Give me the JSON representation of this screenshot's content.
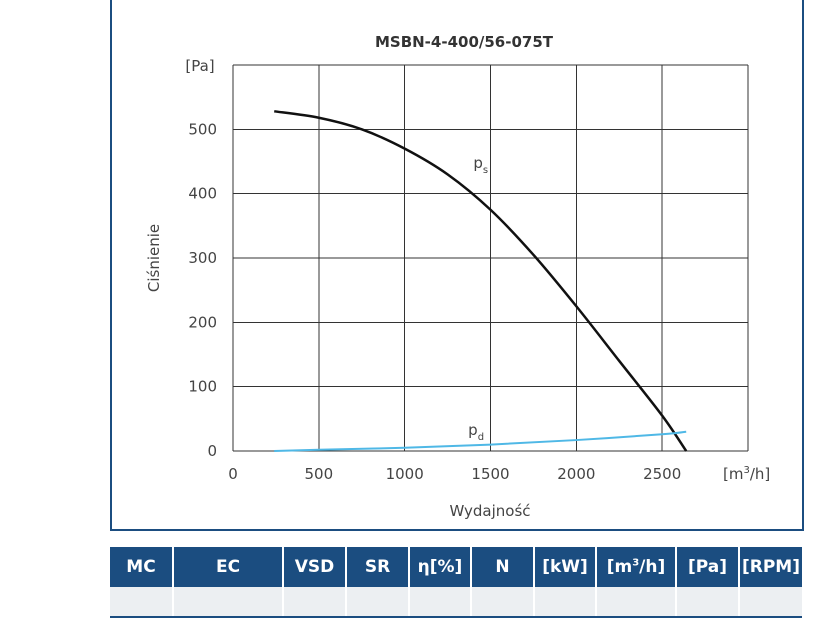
{
  "colors": {
    "frame": "#1b4d80",
    "ps_curve": "#111111",
    "pd_curve": "#4fb8e6",
    "header_bg": "#1b4d80",
    "row_bg": "#eceff2"
  },
  "chart_data": {
    "type": "line",
    "title": "MSBN-4-400/56-075T",
    "xlabel": "Wydajność",
    "ylabel": "Ciśnienie",
    "x_unit_prefix": "[m",
    "x_unit_sup": "3",
    "x_unit_suffix": "/h]",
    "y_unit": "[Pa]",
    "xlim": [
      0,
      3000
    ],
    "ylim": [
      0,
      600
    ],
    "x_ticks": [
      "0",
      "500",
      "1000",
      "1500",
      "2000",
      "2500"
    ],
    "y_ticks": [
      "0",
      "100",
      "200",
      "300",
      "400",
      "500"
    ],
    "grid": true,
    "series": [
      {
        "name": "p",
        "sub": "s",
        "color": "#111111",
        "x": [
          240,
          500,
          750,
          1000,
          1250,
          1500,
          1750,
          2000,
          2250,
          2500,
          2640
        ],
        "y": [
          528,
          518,
          500,
          470,
          430,
          375,
          305,
          225,
          140,
          55,
          0
        ]
      },
      {
        "name": "p",
        "sub": "d",
        "color": "#4fb8e6",
        "x": [
          240,
          500,
          1000,
          1500,
          2000,
          2500,
          2640
        ],
        "y": [
          0,
          2,
          5,
          10,
          17,
          26,
          30
        ]
      }
    ]
  },
  "table": {
    "headers": [
      {
        "pre": "MC",
        "sup": "",
        "post": ""
      },
      {
        "pre": "EC",
        "sup": "",
        "post": ""
      },
      {
        "pre": "VSD",
        "sup": "",
        "post": ""
      },
      {
        "pre": "SR",
        "sup": "",
        "post": ""
      },
      {
        "pre": "η[%]",
        "sup": "",
        "post": ""
      },
      {
        "pre": "N",
        "sup": "",
        "post": ""
      },
      {
        "pre": "[kW]",
        "sup": "",
        "post": ""
      },
      {
        "pre": "[m",
        "sup": "3",
        "post": "/h]"
      },
      {
        "pre": "[Pa]",
        "sup": "",
        "post": ""
      },
      {
        "pre": "[RPM]",
        "sup": "",
        "post": ""
      }
    ],
    "rows": [
      [
        "",
        "",
        "",
        "",
        "",
        "",
        "",
        "",
        "",
        ""
      ]
    ]
  }
}
